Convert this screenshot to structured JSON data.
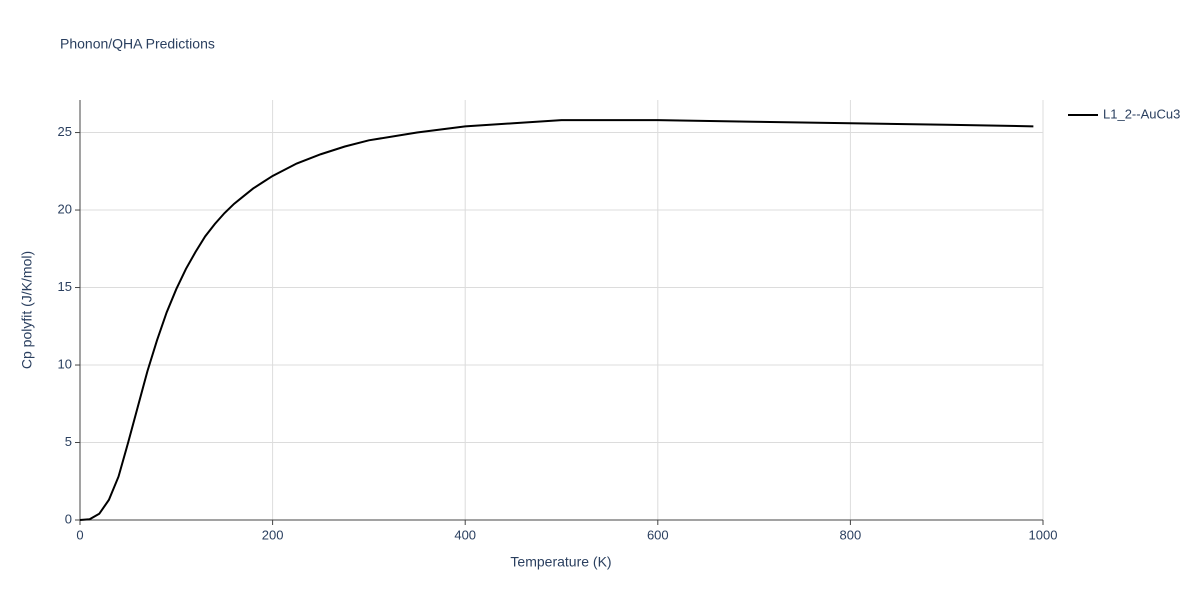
{
  "chart_data": {
    "type": "line",
    "title": "Phonon/QHA Predictions",
    "x_label": "Temperature (K)",
    "y_label": "Cp polyfit (J/K/mol)",
    "x": [
      0,
      10,
      20,
      30,
      40,
      50,
      60,
      70,
      80,
      90,
      100,
      110,
      120,
      130,
      140,
      150,
      160,
      170,
      180,
      190,
      200,
      225,
      250,
      275,
      300,
      350,
      400,
      450,
      500,
      600,
      700,
      800,
      900,
      990
    ],
    "series": [
      {
        "name": "L1_2--AuCu3",
        "color": "#000000",
        "values": [
          0,
          0.05,
          0.4,
          1.3,
          2.8,
          5.0,
          7.3,
          9.6,
          11.6,
          13.4,
          14.9,
          16.2,
          17.3,
          18.3,
          19.1,
          19.8,
          20.4,
          20.9,
          21.4,
          21.8,
          22.2,
          23.0,
          23.6,
          24.1,
          24.5,
          25.0,
          25.4,
          25.6,
          25.8,
          25.8,
          25.7,
          25.6,
          25.5,
          25.4
        ]
      }
    ],
    "xlim": [
      0,
      1000
    ],
    "xticks": [
      0,
      200,
      400,
      600,
      800,
      1000
    ],
    "ylim": [
      0,
      27.1
    ],
    "yticks": [
      0,
      5,
      10,
      15,
      20,
      25
    ],
    "grid": true,
    "legend": "right"
  }
}
